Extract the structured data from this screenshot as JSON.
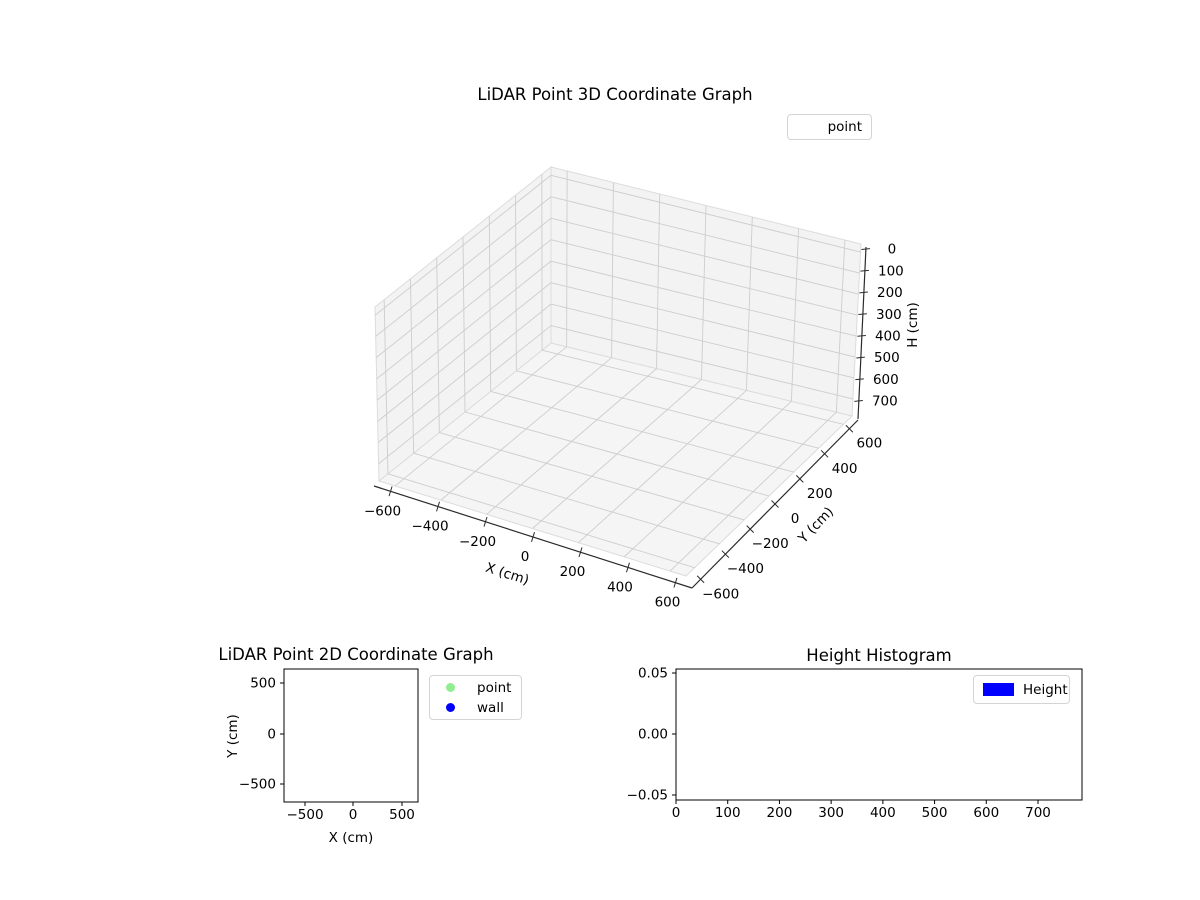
{
  "figure": {
    "background": "#ffffff",
    "accent_colors": {
      "point_green": "#90EE90",
      "wall_blue": "#0000FF",
      "height_blue": "#0000FF"
    }
  },
  "chart_data": [
    {
      "type": "scatter",
      "projection": "3d",
      "title": "LiDAR Point 3D Coordinate Graph",
      "xlabel": "X (cm)",
      "ylabel": "Y (cm)",
      "zlabel": "H (cm)",
      "xticks": [
        "−600",
        "−400",
        "−200",
        "0",
        "200",
        "400",
        "600"
      ],
      "yticks": [
        "−600",
        "−400",
        "−200",
        "0",
        "200",
        "400",
        "600"
      ],
      "zticks": [
        "0",
        "100",
        "200",
        "300",
        "400",
        "500",
        "600",
        "700"
      ],
      "xlim": [
        -700,
        700
      ],
      "ylim": [
        -700,
        700
      ],
      "zlim": [
        0,
        700
      ],
      "zaxis_inverted": true,
      "grid": true,
      "legend": {
        "position": "upper right",
        "items": [
          {
            "label": "point",
            "handle": "none"
          }
        ]
      },
      "series": [
        {
          "name": "point",
          "points": []
        }
      ]
    },
    {
      "type": "scatter",
      "projection": "2d",
      "title": "LiDAR Point 2D Coordinate Graph",
      "xlabel": "X (cm)",
      "ylabel": "Y (cm)",
      "xticks": [
        "−500",
        "0",
        "500"
      ],
      "yticks_top_to_bottom": [
        "500",
        "0",
        "−500"
      ],
      "xlim": [
        -700,
        700
      ],
      "ylim": [
        -700,
        700
      ],
      "grid": false,
      "legend": {
        "position": "outside right",
        "items": [
          {
            "label": "point",
            "marker": "circle",
            "color": "#90EE90"
          },
          {
            "label": "wall",
            "marker": "circle",
            "color": "#0000FF"
          }
        ]
      },
      "series": [
        {
          "name": "point",
          "points": []
        },
        {
          "name": "wall",
          "points": []
        }
      ]
    },
    {
      "type": "bar",
      "title": "Height Histogram",
      "xlabel": "",
      "ylabel": "",
      "xticks": [
        "0",
        "100",
        "200",
        "300",
        "400",
        "500",
        "600",
        "700"
      ],
      "yticks_top_to_bottom": [
        "0.05",
        "0.00",
        "−0.05"
      ],
      "xlim": [
        0,
        780
      ],
      "ylim": [
        -0.055,
        0.055
      ],
      "grid": false,
      "legend": {
        "position": "upper right",
        "items": [
          {
            "label": "Height",
            "color": "#0000FF"
          }
        ]
      },
      "categories": [],
      "values": []
    }
  ]
}
